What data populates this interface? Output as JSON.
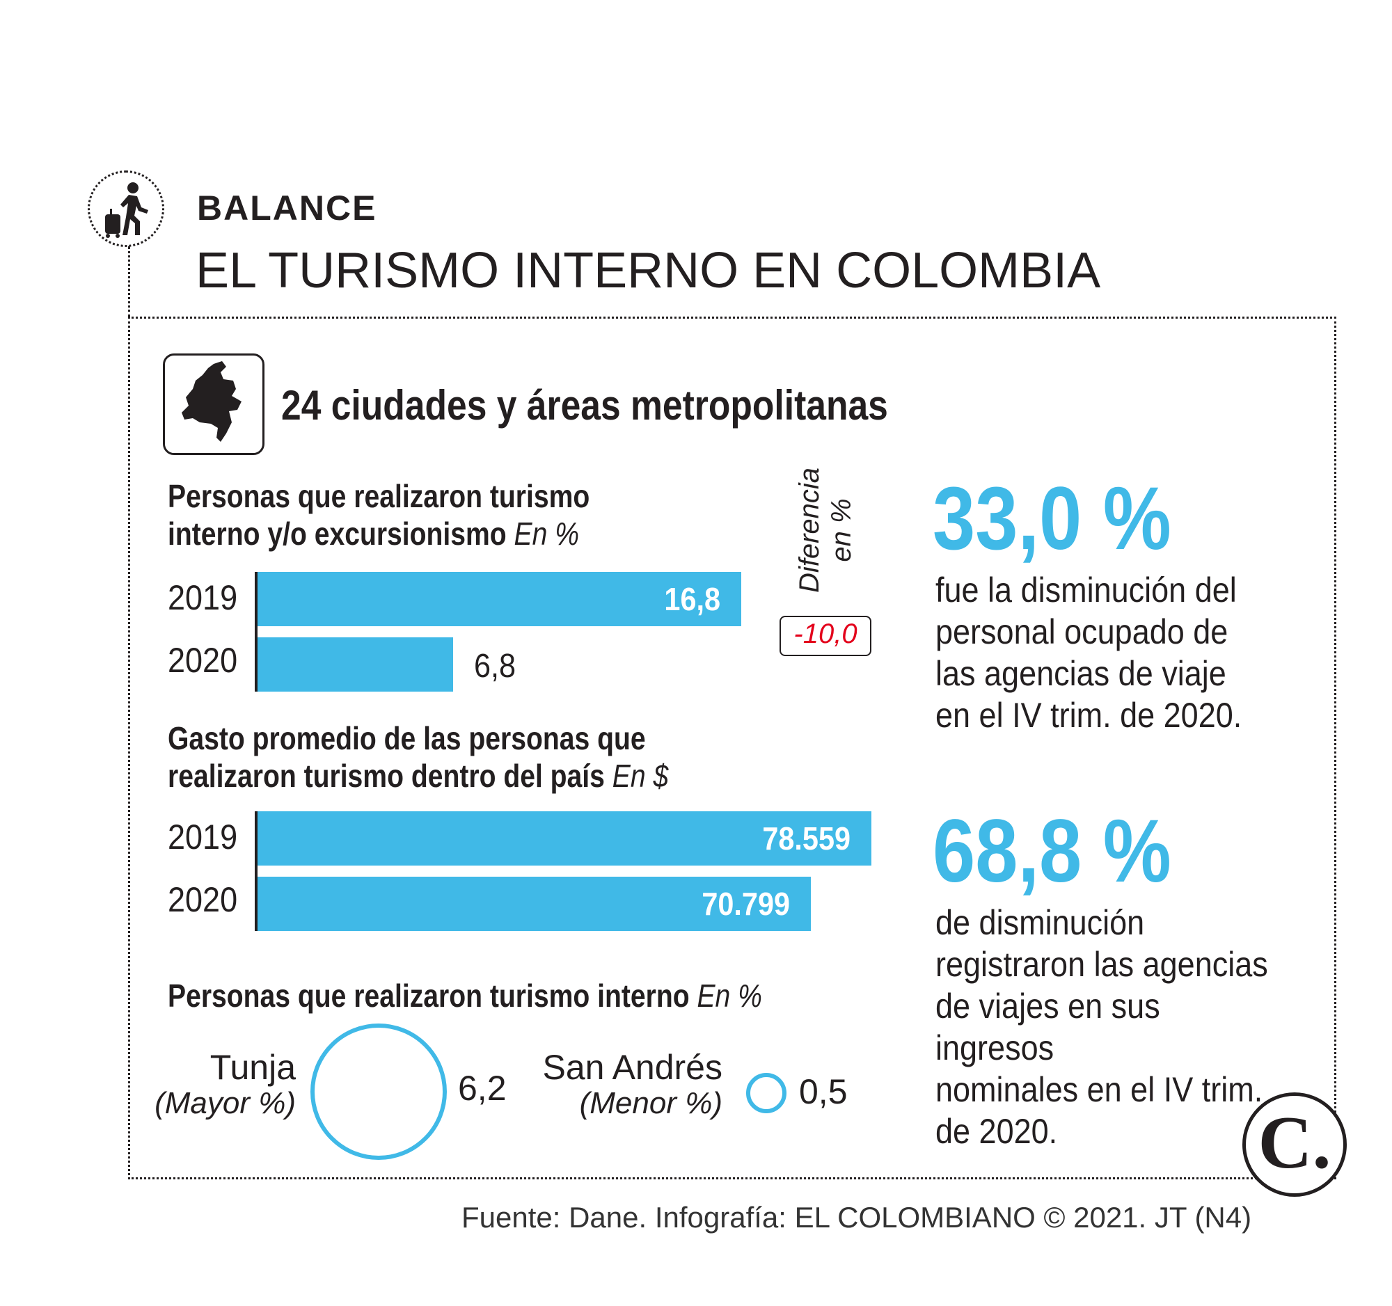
{
  "header": {
    "kicker": "BALANCE",
    "title": "EL TURISMO INTERNO EN COLOMBIA"
  },
  "section": {
    "title": "24 ciudades y áreas metropolitanas"
  },
  "colors": {
    "accent": "#40b9e7",
    "negative": "#e3001b",
    "text": "#231f20"
  },
  "icons": [
    "traveler-with-suitcase-icon",
    "colombia-map-icon",
    "el-colombiano-logo"
  ],
  "chart_data": [
    {
      "type": "bar",
      "orientation": "horizontal",
      "title_line1": "Personas que realizaron turismo",
      "title_line2": "interno y/o excursionismo",
      "unit": "En %",
      "categories": [
        "2019",
        "2020"
      ],
      "values": [
        16.8,
        6.8
      ],
      "value_labels": [
        "16,8",
        "6,8"
      ],
      "difference": {
        "label_line1": "Diferencia",
        "label_line2": "en %",
        "value": -10.0,
        "value_label": "-10,0"
      }
    },
    {
      "type": "bar",
      "orientation": "horizontal",
      "title_line1": "Gasto promedio de las personas que",
      "title_line2": "realizaron turismo dentro del país",
      "unit": "En $",
      "categories": [
        "2019",
        "2020"
      ],
      "values": [
        78559,
        70799
      ],
      "value_labels": [
        "78.559",
        "70.799"
      ]
    },
    {
      "type": "bubble",
      "title": "Personas que realizaron turismo interno",
      "unit": "En %",
      "items": [
        {
          "city": "Tunja",
          "note": "(Mayor %)",
          "value": 6.2,
          "value_label": "6,2"
        },
        {
          "city": "San Andrés",
          "note": "(Menor %)",
          "value": 0.5,
          "value_label": "0,5"
        }
      ]
    }
  ],
  "stats": [
    {
      "value": "33,0 %",
      "lines": [
        "fue la disminución del",
        "personal ocupado de",
        "las agencias de viaje",
        "en el IV trim. de 2020."
      ]
    },
    {
      "value": "68,8 %",
      "lines": [
        "de disminución",
        "registraron las agencias",
        "de viajes en sus ingresos",
        "nominales en el IV trim.",
        "de 2020."
      ]
    }
  ],
  "logo": {
    "letter": "C."
  },
  "source": "Fuente: Dane. Infografía: EL COLOMBIANO © 2021. JT (N4)"
}
